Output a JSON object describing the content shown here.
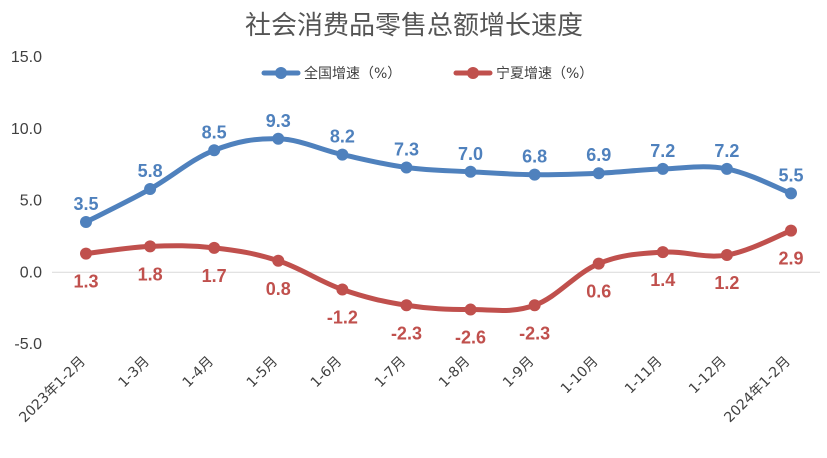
{
  "chart_data": {
    "type": "line",
    "title": "社会消费品零售总额增长速度",
    "categories": [
      "2023年1-2月",
      "1-3月",
      "1-4月",
      "1-5月",
      "1-6月",
      "1-7月",
      "1-8月",
      "1-9月",
      "1-10月",
      "1-11月",
      "1-12月",
      "2024年1-2月"
    ],
    "series": [
      {
        "name": "全国增速（%）",
        "color": "#4F81BD",
        "values": [
          3.5,
          5.8,
          8.5,
          9.3,
          8.2,
          7.3,
          7.0,
          6.8,
          6.9,
          7.2,
          7.2,
          5.5
        ],
        "labels": [
          "3.5",
          "5.8",
          "8.5",
          "9.3",
          "8.2",
          "7.3",
          "7.0",
          "6.8",
          "6.9",
          "7.2",
          "7.2",
          "5.5"
        ],
        "label_position": "above"
      },
      {
        "name": "宁夏增速（%）",
        "color": "#C0504D",
        "values": [
          1.3,
          1.8,
          1.7,
          0.8,
          -1.2,
          -2.3,
          -2.6,
          -2.3,
          0.6,
          1.4,
          1.2,
          2.9
        ],
        "labels": [
          "1.3",
          "1.8",
          "1.7",
          "0.8",
          "-1.2",
          "-2.3",
          "-2.6",
          "-2.3",
          "0.6",
          "1.4",
          "1.2",
          "2.9"
        ],
        "label_position": "below"
      }
    ],
    "ylim": [
      -5.0,
      15.0
    ],
    "yticks": [
      -5.0,
      0.0,
      5.0,
      10.0,
      15.0
    ],
    "ytick_labels": [
      "-5.0",
      "0.0",
      "5.0",
      "10.0",
      "15.0"
    ],
    "xlabel": "",
    "ylabel": "",
    "grid": false,
    "legend": "top-center"
  }
}
